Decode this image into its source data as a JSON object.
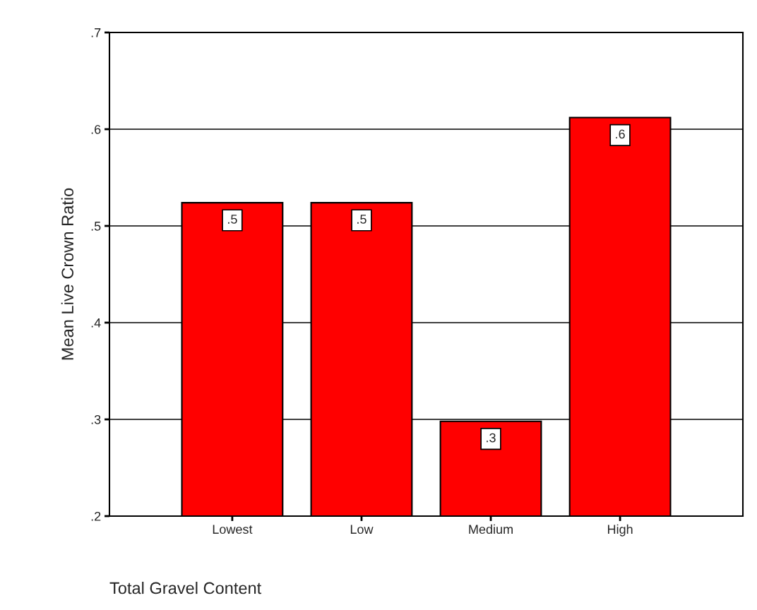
{
  "chart_data": {
    "type": "bar",
    "xlabel": "Total Gravel Content",
    "ylabel": "Mean Live Crown Ratio",
    "categories": [
      "Lowest",
      "Low",
      "Medium",
      "High"
    ],
    "values": [
      0.524,
      0.524,
      0.298,
      0.612
    ],
    "value_labels": [
      ".5",
      ".5",
      ".3",
      ".6"
    ],
    "color": "#ff0000",
    "ylim": [
      0.2,
      0.7
    ],
    "yticks": [
      {
        "value": 0.2,
        "label": ".2"
      },
      {
        "value": 0.3,
        "label": ".3"
      },
      {
        "value": 0.4,
        "label": ".4"
      },
      {
        "value": 0.5,
        "label": ".5"
      },
      {
        "value": 0.6,
        "label": ".6"
      },
      {
        "value": 0.7,
        "label": ".7"
      }
    ],
    "grid": "y"
  }
}
